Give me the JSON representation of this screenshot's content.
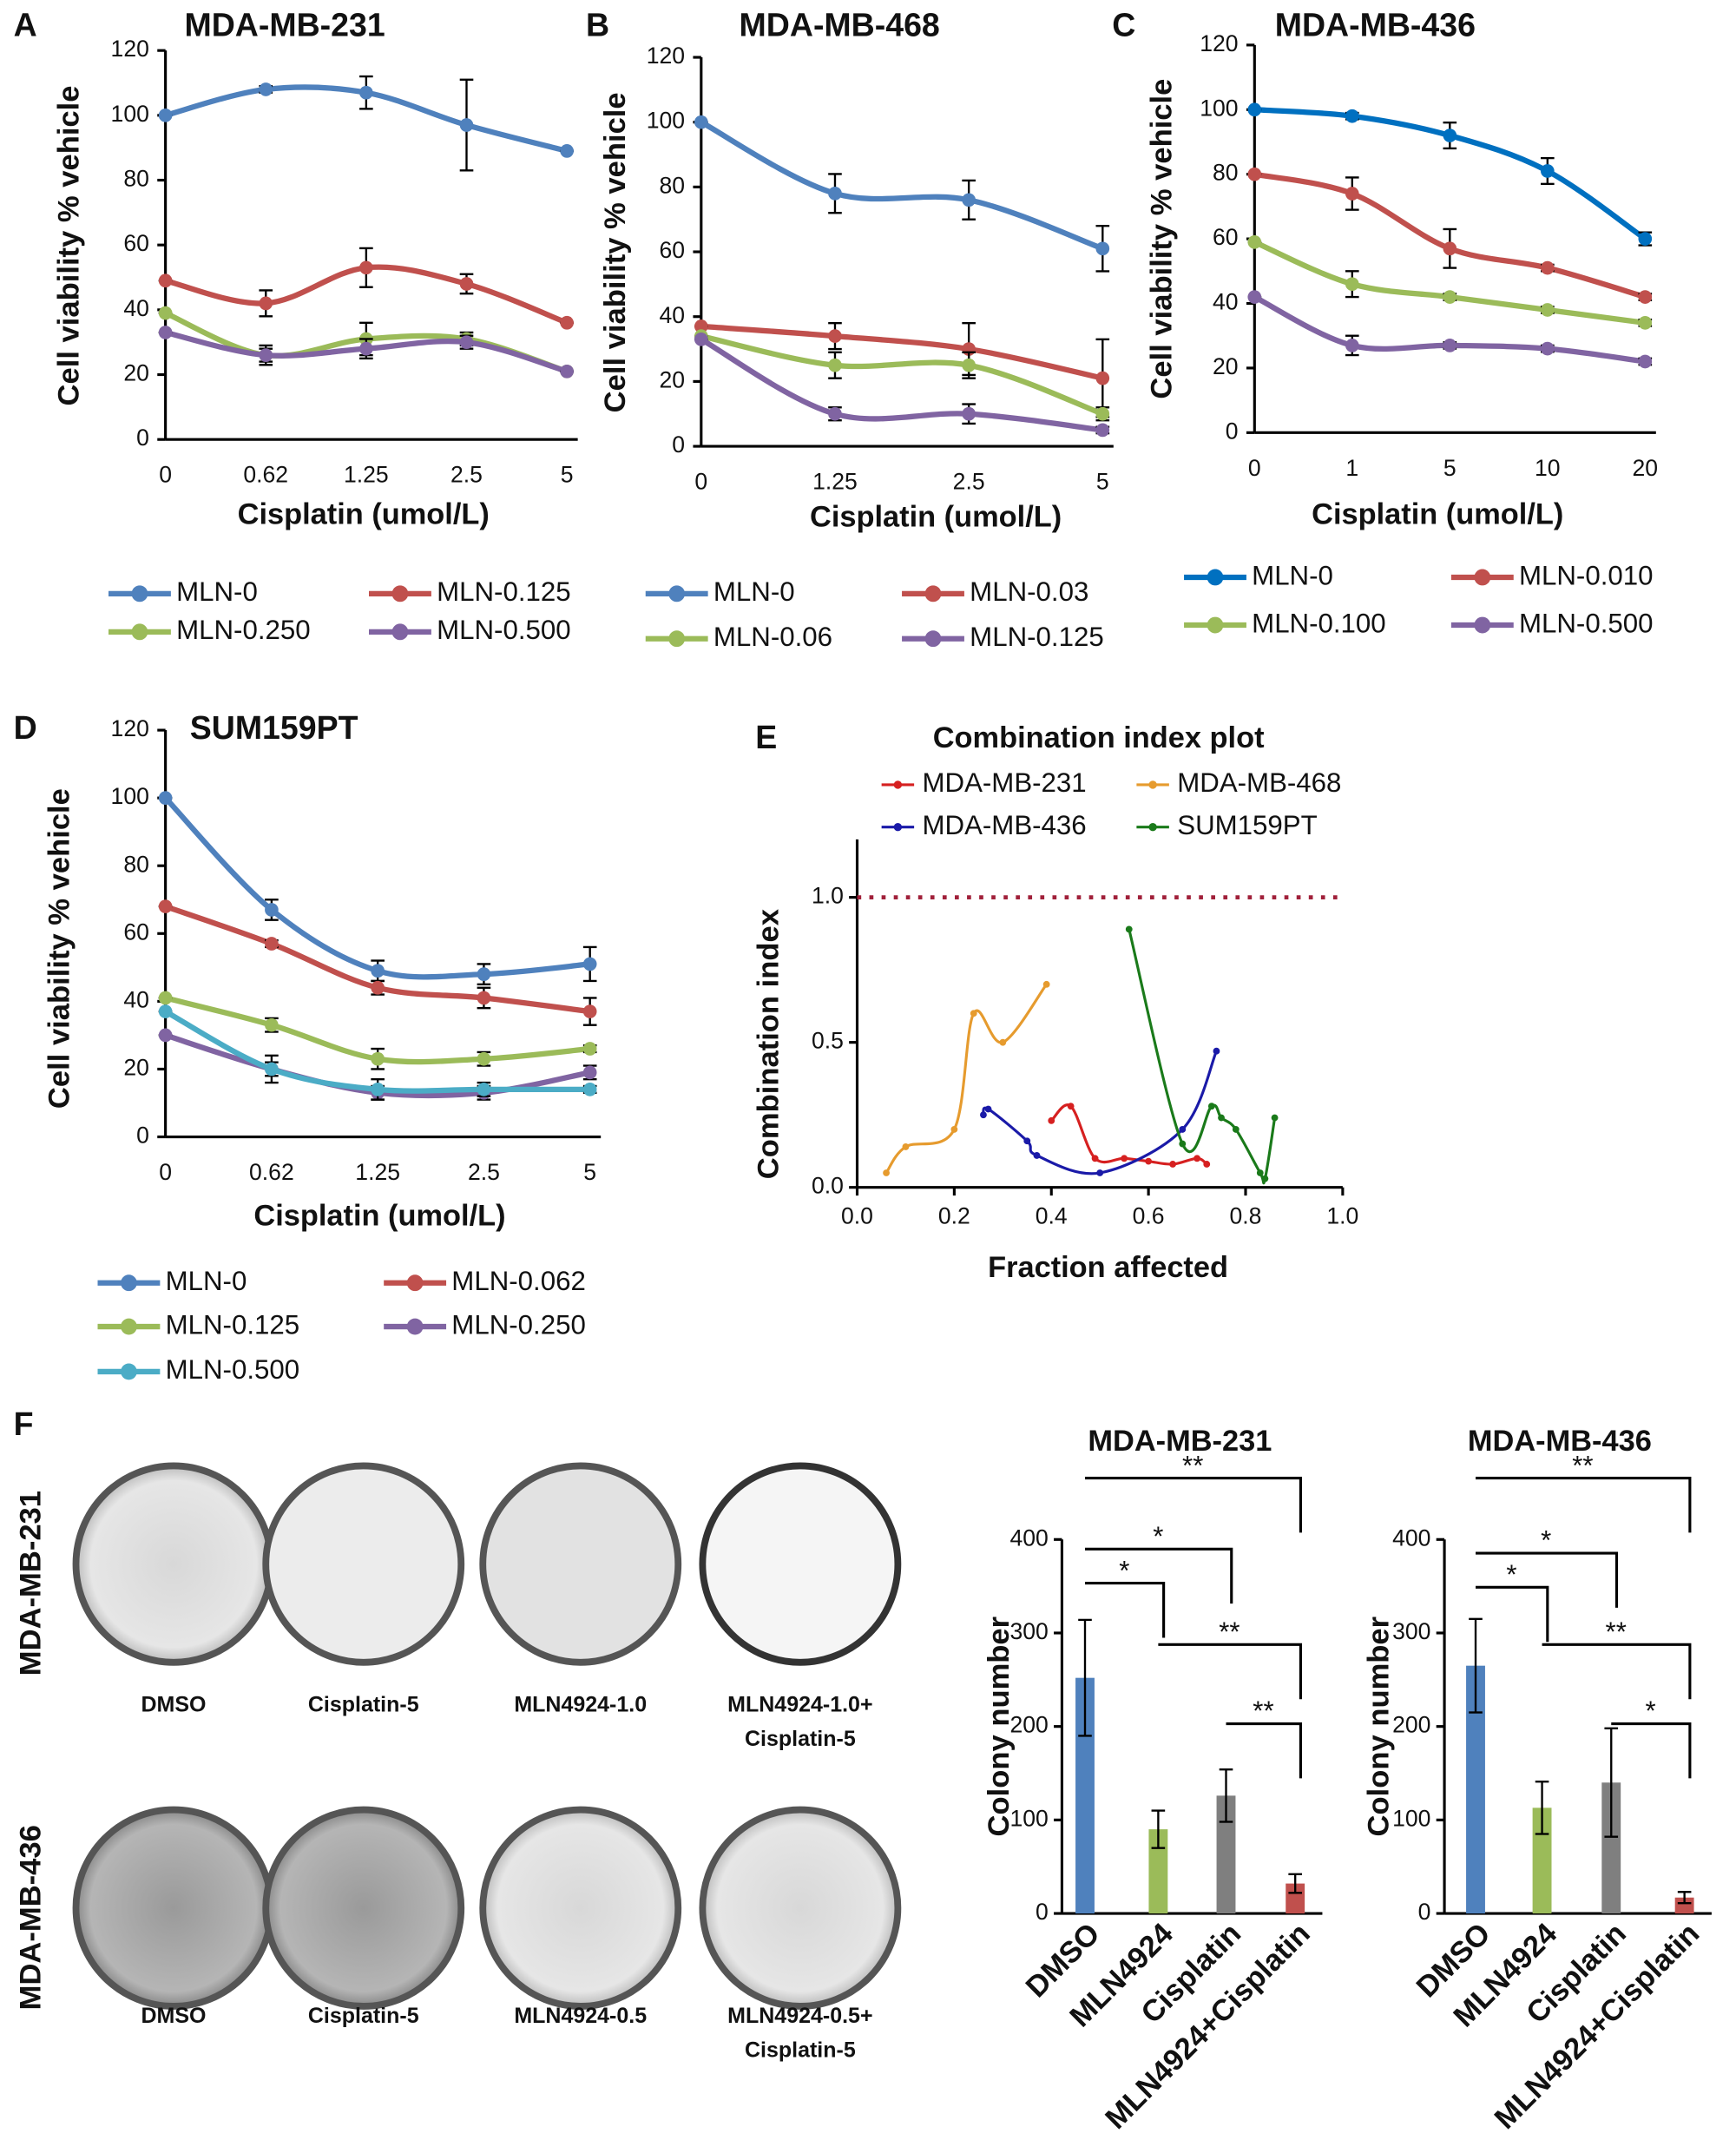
{
  "chart_data": [
    {
      "type": "line",
      "panel": "A",
      "title": "MDA-MB-231",
      "ylabel": "Cell viability  % vehicle",
      "xlabel": "Cisplatin (umol/L)",
      "categories": [
        "0",
        "0.62",
        "1.25",
        "2.5",
        "5"
      ],
      "ylim": [
        0,
        120
      ],
      "yticks": [
        0,
        20,
        40,
        60,
        80,
        100,
        120
      ],
      "series": [
        {
          "name": "MLN-0",
          "color": "#4f81bd",
          "values": [
            100,
            108,
            107,
            97,
            89
          ],
          "errors": [
            0,
            1,
            5,
            14,
            0
          ]
        },
        {
          "name": "MLN-0.125",
          "color": "#c0504d",
          "values": [
            49,
            42,
            53,
            48,
            36
          ],
          "errors": [
            0,
            4,
            6,
            3,
            0
          ]
        },
        {
          "name": "MLN-0.250",
          "color": "#9bbb59",
          "values": [
            39,
            26,
            31,
            31,
            21
          ],
          "errors": [
            0,
            3,
            5,
            2,
            0
          ]
        },
        {
          "name": "MLN-0.500",
          "color": "#8064a2",
          "values": [
            33,
            26,
            28,
            30,
            21
          ],
          "errors": [
            0,
            2,
            3,
            2,
            0
          ]
        }
      ]
    },
    {
      "type": "line",
      "panel": "B",
      "title": "MDA-MB-468",
      "ylabel": "Cell viability % vehicle",
      "xlabel": "Cisplatin (umol/L)",
      "categories": [
        "0",
        "1.25",
        "2.5",
        "5"
      ],
      "ylim": [
        0,
        120
      ],
      "yticks": [
        0,
        20,
        40,
        60,
        80,
        100,
        120
      ],
      "series": [
        {
          "name": "MLN-0",
          "color": "#4f81bd",
          "values": [
            100,
            78,
            76,
            61
          ],
          "errors": [
            0,
            6,
            6,
            7
          ]
        },
        {
          "name": "MLN-0.03",
          "color": "#c0504d",
          "values": [
            37,
            34,
            30,
            21
          ],
          "errors": [
            0,
            4,
            8,
            12
          ]
        },
        {
          "name": "MLN-0.06",
          "color": "#9bbb59",
          "values": [
            34,
            25,
            25,
            10
          ],
          "errors": [
            0,
            4,
            4,
            2
          ]
        },
        {
          "name": "MLN-0.125",
          "color": "#8064a2",
          "values": [
            33,
            10,
            10,
            5
          ],
          "errors": [
            0,
            2,
            3,
            1
          ]
        }
      ]
    },
    {
      "type": "line",
      "panel": "C",
      "title": "MDA-MB-436",
      "ylabel": "Cell viability  % vehicle",
      "xlabel": "Cisplatin (umol/L)",
      "categories": [
        "0",
        "1",
        "5",
        "10",
        "20"
      ],
      "ylim": [
        0,
        120
      ],
      "yticks": [
        0,
        20,
        40,
        60,
        80,
        100,
        120
      ],
      "series": [
        {
          "name": "MLN-0",
          "color": "#0070c0",
          "values": [
            100,
            98,
            92,
            81,
            60
          ],
          "errors": [
            0,
            1,
            4,
            4,
            2
          ]
        },
        {
          "name": "MLN-0.010",
          "color": "#c0504d",
          "values": [
            80,
            74,
            57,
            51,
            42
          ],
          "errors": [
            0,
            5,
            6,
            1,
            1
          ]
        },
        {
          "name": "MLN-0.100",
          "color": "#9bbb59",
          "values": [
            59,
            46,
            42,
            38,
            34
          ],
          "errors": [
            0,
            4,
            1,
            1,
            1
          ]
        },
        {
          "name": "MLN-0.500",
          "color": "#8064a2",
          "values": [
            42,
            27,
            27,
            26,
            22
          ],
          "errors": [
            0,
            3,
            1,
            1,
            1
          ]
        }
      ]
    },
    {
      "type": "line",
      "panel": "D",
      "title": "SUM159PT",
      "ylabel": "Cell viability % vehicle",
      "xlabel": "Cisplatin (umol/L)",
      "categories": [
        "0",
        "0.62",
        "1.25",
        "2.5",
        "5"
      ],
      "ylim": [
        0,
        120
      ],
      "yticks": [
        0,
        20,
        40,
        60,
        80,
        100,
        120
      ],
      "series": [
        {
          "name": "MLN-0",
          "color": "#4f81bd",
          "values": [
            100,
            67,
            49,
            48,
            51
          ],
          "errors": [
            0,
            3,
            3,
            3,
            5
          ]
        },
        {
          "name": "MLN-0.062",
          "color": "#c0504d",
          "values": [
            68,
            57,
            44,
            41,
            37
          ],
          "errors": [
            0,
            1,
            2,
            3,
            4
          ]
        },
        {
          "name": "MLN-0.125",
          "color": "#9bbb59",
          "values": [
            41,
            33,
            23,
            23,
            26
          ],
          "errors": [
            0,
            2,
            3,
            2,
            1
          ]
        },
        {
          "name": "MLN-0.250",
          "color": "#8064a2",
          "values": [
            30,
            20,
            13,
            13,
            19
          ],
          "errors": [
            0,
            2,
            2,
            2,
            2
          ]
        },
        {
          "name": "MLN-0.500",
          "color": "#4bacc6",
          "values": [
            37,
            20,
            14,
            14,
            14
          ],
          "errors": [
            0,
            4,
            3,
            2,
            1
          ]
        }
      ]
    },
    {
      "type": "scatter",
      "panel": "E",
      "title": "Combination index plot",
      "ylabel": "Combination index",
      "xlabel": "Fraction affected",
      "xlim": [
        0,
        1
      ],
      "ylim": [
        0,
        1.2
      ],
      "hline": 1,
      "hline_color": "#a0203a",
      "xticks": [
        {
          "value": 0,
          "label": "0.0"
        },
        {
          "value": 0.2,
          "label": "0.2"
        },
        {
          "value": 0.4,
          "label": "0.4"
        },
        {
          "value": 0.6,
          "label": "0.6"
        },
        {
          "value": 0.8,
          "label": "0.8"
        },
        {
          "value": 1,
          "label": "1.0"
        }
      ],
      "yticks": [
        {
          "value": 0,
          "label": "0.0"
        },
        {
          "value": 0.5,
          "label": "0.5"
        },
        {
          "value": 1,
          "label": "1.0"
        }
      ],
      "series": [
        {
          "name": "MDA-MB-231",
          "color": "#d62020",
          "x": [
            0.4,
            0.44,
            0.49,
            0.55,
            0.6,
            0.65,
            0.7,
            0.72
          ],
          "values": [
            0.23,
            0.28,
            0.1,
            0.1,
            0.09,
            0.08,
            0.1,
            0.08
          ]
        },
        {
          "name": "MDA-MB-468",
          "color": "#e69b2e",
          "x": [
            0.06,
            0.1,
            0.2,
            0.24,
            0.3,
            0.39
          ],
          "values": [
            0.05,
            0.14,
            0.2,
            0.6,
            0.5,
            0.7
          ]
        },
        {
          "name": "MDA-MB-436",
          "color": "#1a1aa8",
          "x": [
            0.26,
            0.27,
            0.35,
            0.37,
            0.5,
            0.67,
            0.74
          ],
          "values": [
            0.25,
            0.27,
            0.16,
            0.11,
            0.05,
            0.2,
            0.47
          ]
        },
        {
          "name": "SUM159PT",
          "color": "#1a7a1a",
          "x": [
            0.56,
            0.67,
            0.73,
            0.75,
            0.78,
            0.83,
            0.84,
            0.86
          ],
          "values": [
            0.89,
            0.15,
            0.28,
            0.24,
            0.2,
            0.05,
            0.03,
            0.24
          ]
        }
      ]
    },
    {
      "type": "bar",
      "title": "MDA-MB-231",
      "ylabel": "Colony number",
      "categories": [
        "DMSO",
        "MLN4924",
        "Cisplatin",
        "MLN4924+Cisplatin"
      ],
      "values": [
        252,
        90,
        126,
        32
      ],
      "errors": [
        62,
        20,
        28,
        10
      ],
      "colors": [
        "#4f81bd",
        "#9bbb59",
        "#7f7f7f",
        "#c0504d"
      ],
      "ylim": [
        0,
        400
      ],
      "yticks": [
        0,
        100,
        200,
        300,
        400
      ],
      "significance": [
        {
          "from": 0,
          "to": 3,
          "label": "**"
        },
        {
          "from": 0,
          "to": 2,
          "label": "*"
        },
        {
          "from": 0,
          "to": 1,
          "label": "*"
        },
        {
          "from": 1,
          "to": 3,
          "label": "**"
        },
        {
          "from": 2,
          "to": 3,
          "label": "**"
        }
      ]
    },
    {
      "type": "bar",
      "title": "MDA-MB-436",
      "ylabel": "Colony number",
      "categories": [
        "DMSO",
        "MLN4924",
        "Cisplatin",
        "MLN4924+Cisplatin"
      ],
      "values": [
        265,
        113,
        140,
        17
      ],
      "errors": [
        50,
        28,
        58,
        6
      ],
      "colors": [
        "#4f81bd",
        "#9bbb59",
        "#7f7f7f",
        "#c0504d"
      ],
      "ylim": [
        0,
        400
      ],
      "yticks": [
        0,
        100,
        200,
        300,
        400
      ],
      "significance": [
        {
          "from": 0,
          "to": 3,
          "label": "**"
        },
        {
          "from": 0,
          "to": 2,
          "label": "*"
        },
        {
          "from": 0,
          "to": 1,
          "label": "*"
        },
        {
          "from": 1,
          "to": 3,
          "label": "**"
        },
        {
          "from": 2,
          "to": 3,
          "label": "*"
        }
      ]
    }
  ],
  "figure_f": {
    "panel": "F",
    "rows": [
      "MDA-MB-231",
      "MDA-MB-436"
    ],
    "labels": [
      [
        [
          "DMSO"
        ],
        [
          "Cisplatin-5"
        ],
        [
          "MLN4924-1.0"
        ],
        [
          "MLN4924-1.0+",
          "Cisplatin-5"
        ]
      ],
      [
        [
          "DMSO"
        ],
        [
          "Cisplatin-5"
        ],
        [
          "MLN4924-0.5"
        ],
        [
          "MLN4924-0.5+",
          "Cisplatin-5"
        ]
      ]
    ]
  }
}
